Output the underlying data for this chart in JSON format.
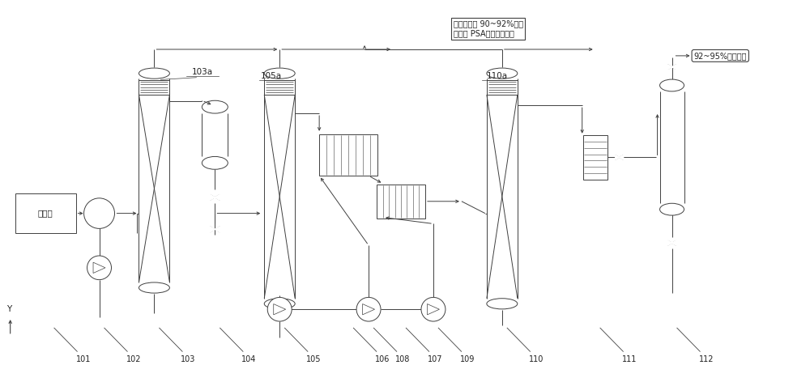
{
  "bg_color": "#ffffff",
  "line_color": "#404040",
  "text_color": "#202020",
  "box1_label": "烟道气",
  "label_103a": "103a",
  "label_105a": "105a",
  "label_110a": "110a",
  "top_box_text": "塔顶放空气 90~92%氮气\n去氮气 PSA浓缩提纯系统",
  "right_box_text": "92~95%二氧化碘",
  "eq_labels": [
    "101",
    "102",
    "103",
    "104",
    "105",
    "106",
    "107",
    "108",
    "109",
    "110",
    "111",
    "112"
  ]
}
